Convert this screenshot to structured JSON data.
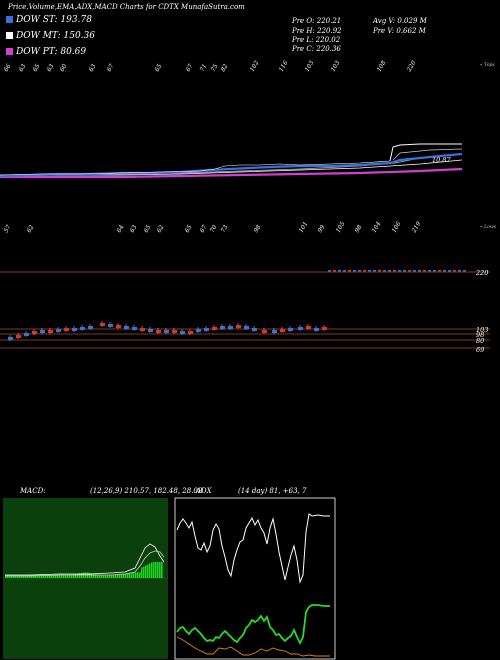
{
  "title": "Price,Volume,EMA,ADX,MACD Charts for CDTX  MunafaSutra.com",
  "legend": [
    {
      "label": "DOW ST: 193.78",
      "color": "#3a6fe0"
    },
    {
      "label": "DOW MT: 150.36",
      "color": "#ffffff"
    },
    {
      "label": "DOW PT: 80.69",
      "color": "#d23fd0"
    }
  ],
  "prev": {
    "open": "Pre  O: 220.21",
    "high": "Pre  H: 220.92",
    "low": "Pre  L: 220.02",
    "close": "Pre  C: 220.36",
    "avg_vol": "Avg V: 0.029 M",
    "prev_vol": "Pre  V: 0.662  M"
  },
  "top_ticks": [
    "66",
    "63",
    "65",
    "63",
    "60",
    "63",
    "67",
    "65",
    "67",
    "71",
    "75",
    "82",
    "102",
    "116",
    "103",
    "103",
    "108",
    "220"
  ],
  "top_right": "« Tops",
  "bottom_ticks": [
    "57",
    "62",
    "64",
    "63",
    "65",
    "62",
    "65",
    "67",
    "70",
    "73",
    "98",
    "101",
    "99",
    "105",
    "98",
    "104",
    "106",
    "219"
  ],
  "bottom_right": "« Lows",
  "price_label": "10.87",
  "band_labels": [
    "220",
    "103",
    "98",
    "80",
    "69"
  ],
  "macd_label": "MACD:",
  "macd_values": "(12,26,9) 210.57, 182.48, 28.09",
  "adx_label": "ADX",
  "adx_values": "(14 day) 81, +63, 7",
  "colors": {
    "ema_st": "#3a6fe0",
    "ema_mt": "#ffffff",
    "ema_pt": "#d23fd0",
    "band": "#a0522d",
    "macd_green": "#22cc22",
    "adx_green": "#22dd22",
    "adx_orange": "#e08020"
  }
}
